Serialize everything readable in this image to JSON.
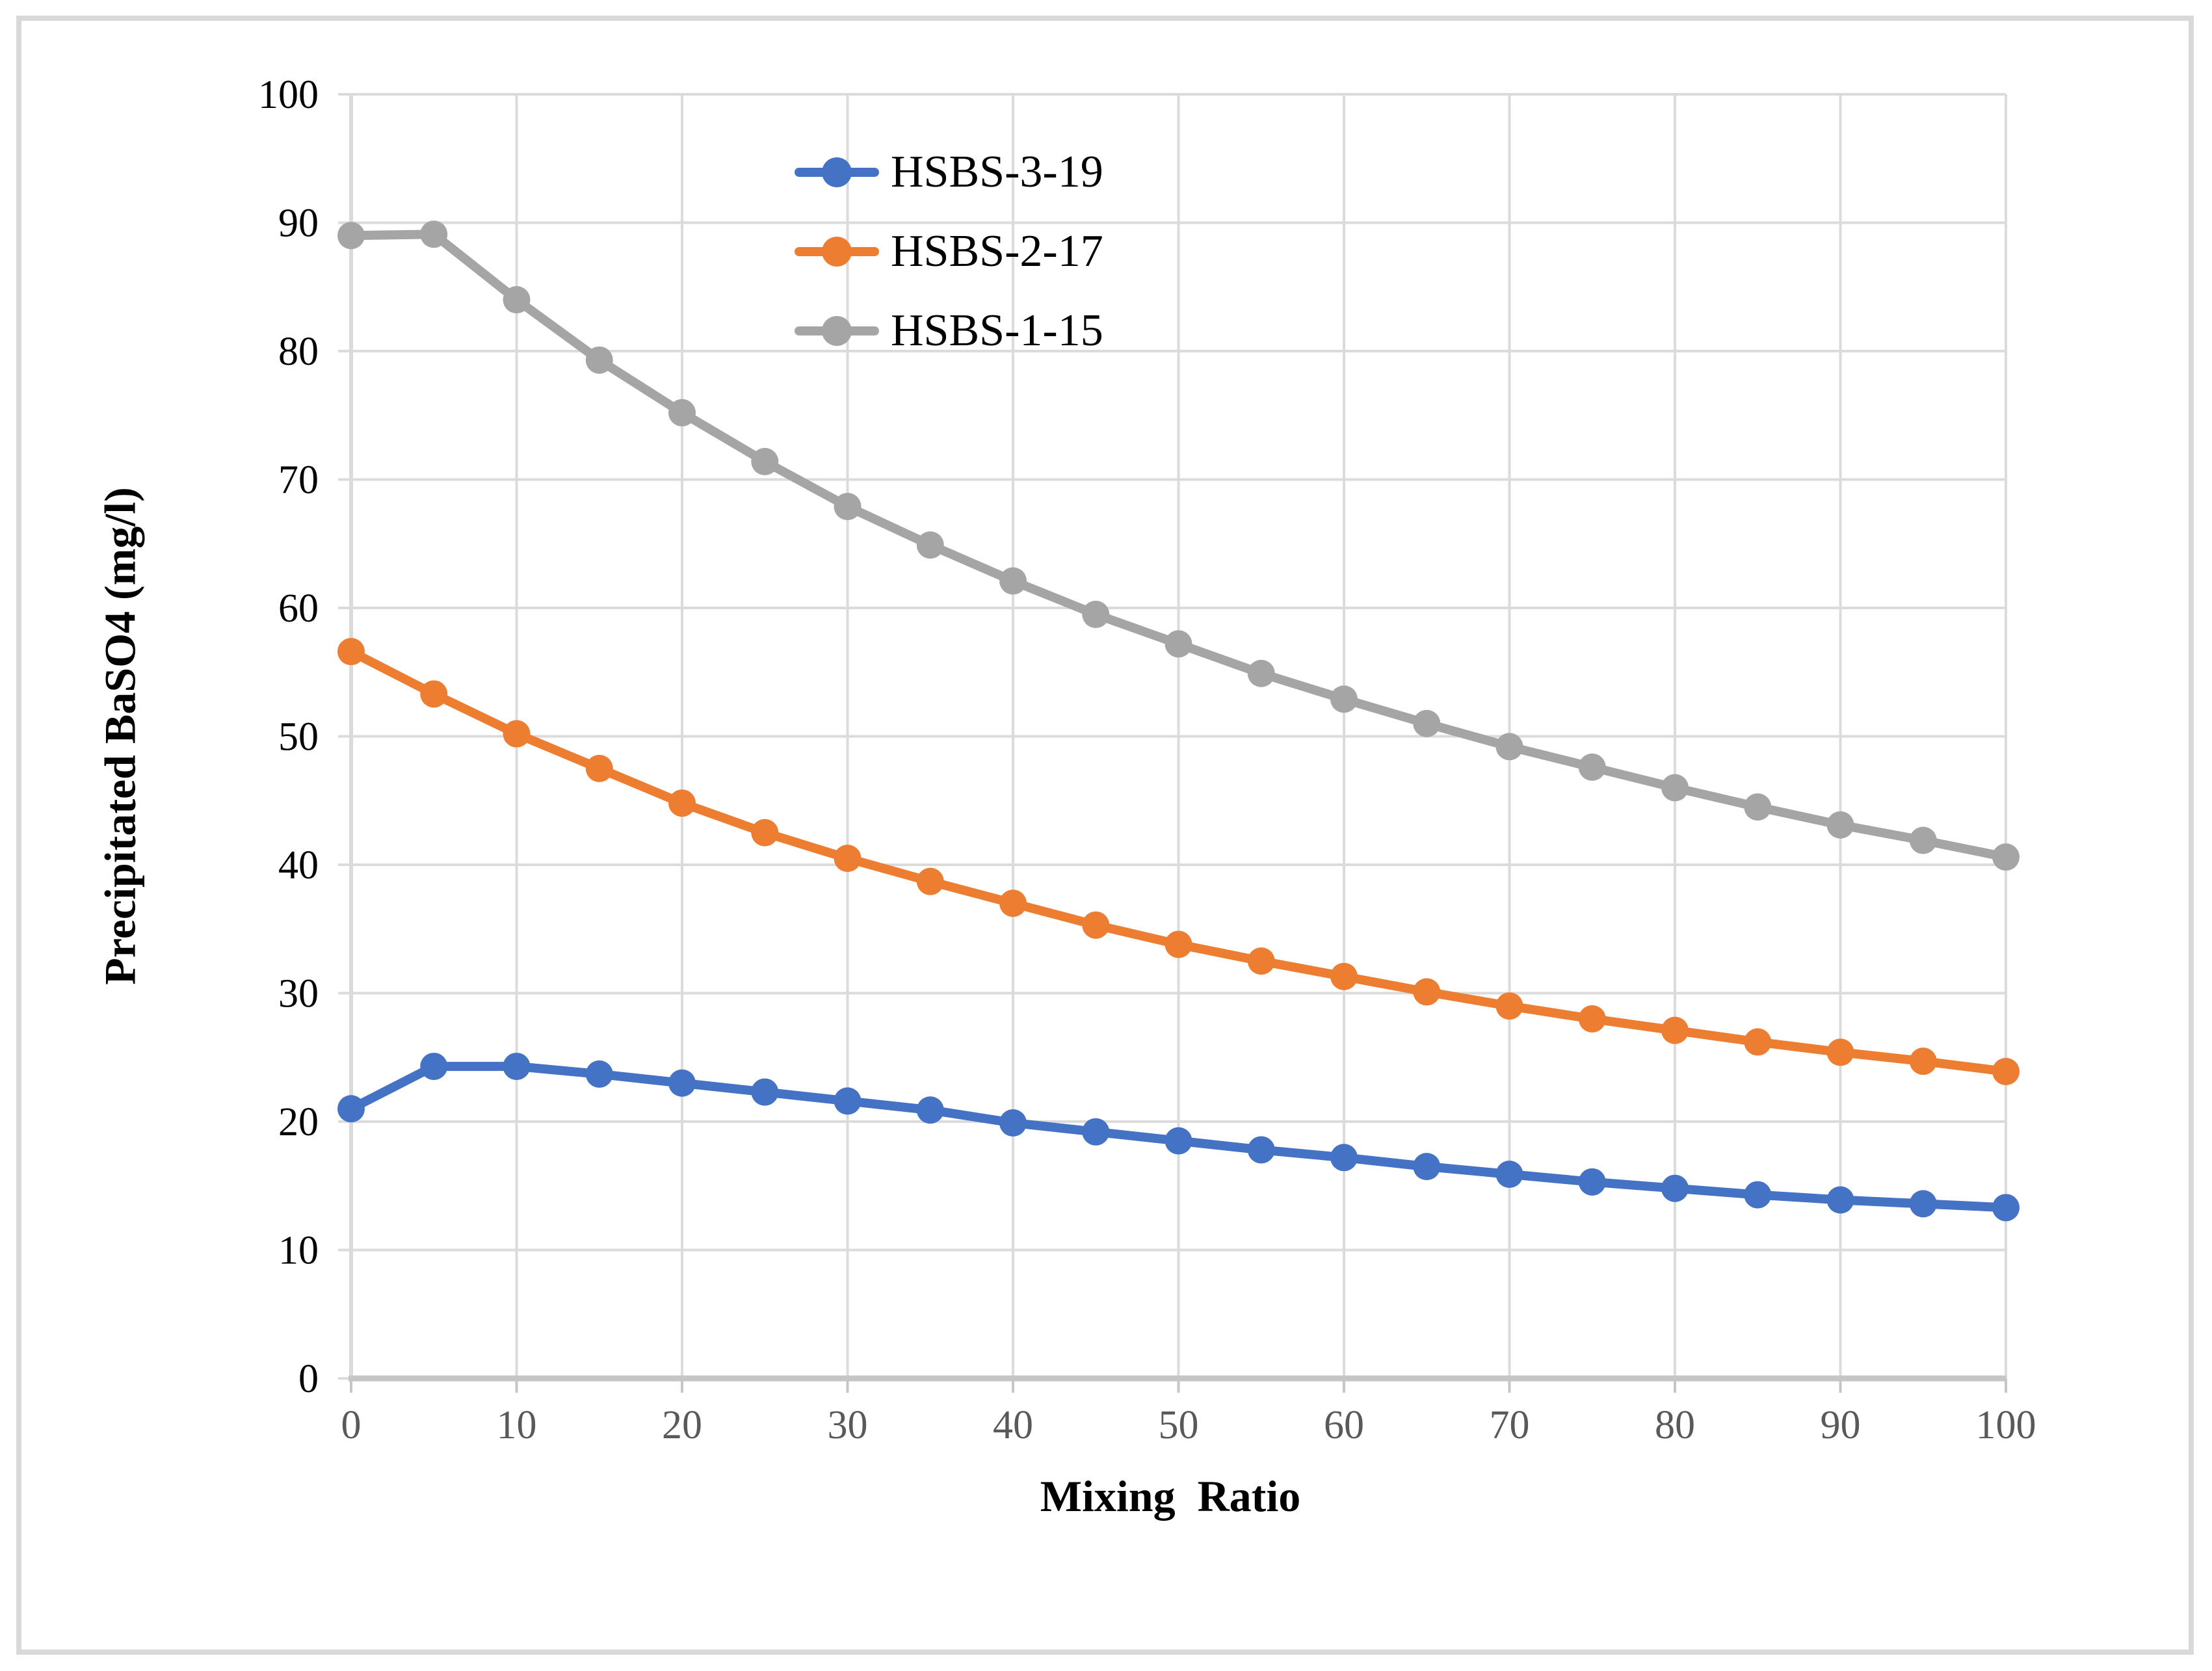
{
  "figure": {
    "background": "#FFFFFF",
    "border_color": "#D9D9D9"
  },
  "chart_data": {
    "type": "line",
    "title": "",
    "xlabel": "Mixing  Ratio",
    "ylabel": "Precipitated BaSO4 (mg/l)",
    "xlim": [
      0,
      100
    ],
    "ylim": [
      0,
      100
    ],
    "x_ticks": [
      0,
      10,
      20,
      30,
      40,
      50,
      60,
      70,
      80,
      90,
      100
    ],
    "y_ticks": [
      0,
      10,
      20,
      30,
      40,
      50,
      60,
      70,
      80,
      90,
      100
    ],
    "grid": true,
    "legend_position": "inside-upper-left",
    "x": [
      0,
      5,
      10,
      15,
      20,
      25,
      30,
      35,
      40,
      45,
      50,
      55,
      60,
      65,
      70,
      75,
      80,
      85,
      90,
      95,
      100
    ],
    "series": [
      {
        "name": "HSBS-3-19",
        "color": "#4472C4",
        "values": [
          21.0,
          24.3,
          24.3,
          23.7,
          23.0,
          22.3,
          21.6,
          20.9,
          19.9,
          19.2,
          18.5,
          17.8,
          17.2,
          16.5,
          15.9,
          15.3,
          14.8,
          14.3,
          13.9,
          13.6,
          13.3
        ]
      },
      {
        "name": "HSBS-2-17",
        "color": "#ED7D31",
        "values": [
          56.6,
          53.3,
          50.2,
          47.5,
          44.8,
          42.5,
          40.5,
          38.7,
          37.0,
          35.3,
          33.8,
          32.5,
          31.3,
          30.1,
          29.0,
          28.0,
          27.1,
          26.2,
          25.4,
          24.7,
          23.9
        ]
      },
      {
        "name": "HSBS-1-15",
        "color": "#A5A5A5",
        "values": [
          89.0,
          89.1,
          84.0,
          79.3,
          75.2,
          71.4,
          67.9,
          64.9,
          62.1,
          59.5,
          57.2,
          54.9,
          52.9,
          51.0,
          49.2,
          47.6,
          46.0,
          44.5,
          43.1,
          41.9,
          40.6
        ]
      }
    ],
    "styles": {
      "grid_color": "#DBDBDB",
      "axis_color": "#C6C6C6",
      "x_tick_color": "#595959",
      "y_tick_color": "#000000",
      "line_width": 14,
      "marker_radius": 21
    }
  }
}
